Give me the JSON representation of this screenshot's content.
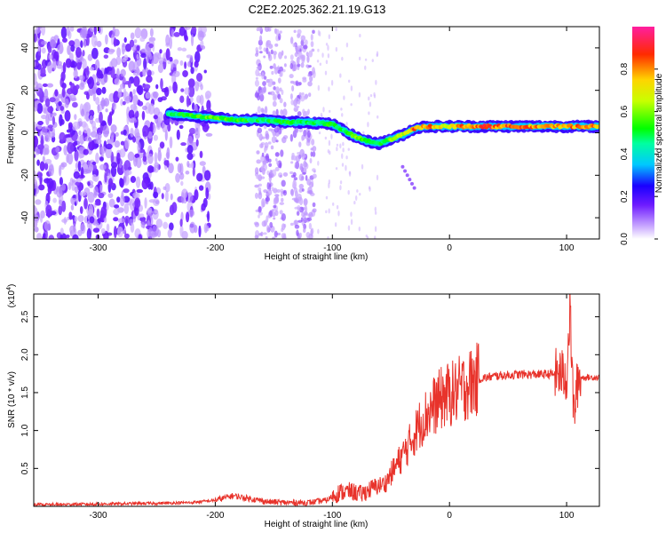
{
  "title": "C2E2.2025.362.21.19.G13",
  "chart_data": [
    {
      "type": "heatmap",
      "xlabel": "Height of straight line (km)",
      "ylabel": "Frequency (Hz)",
      "xlim": [
        -355,
        128
      ],
      "ylim": [
        -50,
        50
      ],
      "xticks": [
        -300,
        -200,
        -100,
        0,
        100
      ],
      "yticks": [
        -40,
        -20,
        0,
        20,
        40
      ],
      "colorbar": {
        "label": "Normalized spectral amplitude",
        "range": [
          0,
          1
        ],
        "ticks": [
          0.0,
          0.2,
          0.4,
          0.6,
          0.8
        ]
      },
      "ridge": {
        "x": [
          -240,
          -220,
          -200,
          -180,
          -160,
          -140,
          -120,
          -100,
          -90,
          -80,
          -70,
          -60,
          -50,
          -40,
          -30,
          -20,
          -10,
          0,
          10,
          30,
          60,
          90,
          110,
          128
        ],
        "y": [
          9,
          8,
          7,
          6,
          6,
          5,
          5,
          4,
          1,
          -2,
          -4,
          -5,
          -3,
          -1,
          2,
          3,
          3,
          3,
          3,
          3,
          3,
          3,
          3,
          3
        ],
        "amplitude": [
          0.5,
          0.55,
          0.6,
          0.55,
          0.5,
          0.55,
          0.5,
          0.55,
          0.5,
          0.6,
          0.55,
          0.5,
          0.6,
          0.7,
          0.85,
          0.85,
          0.8,
          0.7,
          0.85,
          0.9,
          0.85,
          0.8,
          0.85,
          0.8
        ]
      },
      "grid": false
    },
    {
      "type": "line",
      "xlabel": "Height of straight line (km)",
      "ylabel": "SNR (10 * v/v)",
      "y_multiplier": "(x10^4)",
      "xlim": [
        -355,
        128
      ],
      "ylim": [
        0,
        2.8
      ],
      "xticks": [
        -300,
        -200,
        -100,
        0,
        100
      ],
      "yticks": [
        0.5,
        1.0,
        1.5,
        2.0,
        2.5
      ],
      "series": [
        {
          "color": "#e8332b",
          "x": [
            -355,
            -300,
            -250,
            -220,
            -200,
            -185,
            -170,
            -155,
            -140,
            -120,
            -105,
            -95,
            -85,
            -75,
            -65,
            -55,
            -45,
            -35,
            -25,
            -15,
            -5,
            5,
            15,
            25,
            40,
            60,
            80,
            95,
            100,
            103,
            106,
            110,
            128
          ],
          "y": [
            0.02,
            0.03,
            0.04,
            0.05,
            0.08,
            0.14,
            0.1,
            0.06,
            0.05,
            0.05,
            0.08,
            0.18,
            0.2,
            0.16,
            0.25,
            0.3,
            0.55,
            0.8,
            1.1,
            1.3,
            1.45,
            1.5,
            1.6,
            1.68,
            1.72,
            1.74,
            1.74,
            1.75,
            1.7,
            2.6,
            1.2,
            1.7,
            1.7
          ]
        }
      ],
      "grid": false
    }
  ],
  "colors": {
    "frame": "#000000",
    "snr_line": "#e8332b"
  }
}
